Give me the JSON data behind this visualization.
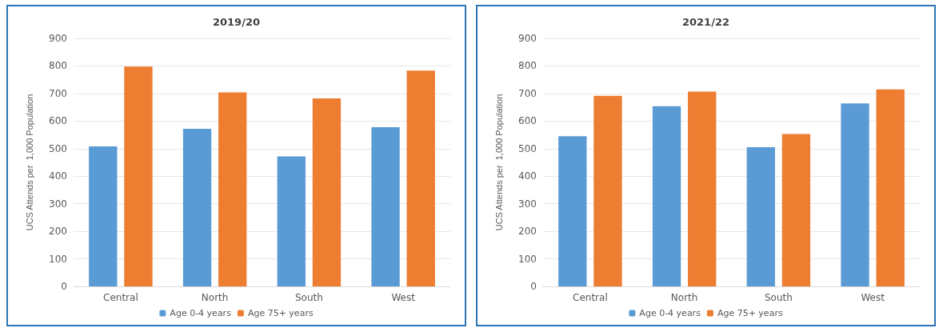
{
  "chart_data": [
    {
      "type": "bar",
      "title": "2019/20",
      "ylabel": "UCS Attends per  1,000 Population",
      "categories": [
        "Central",
        "North",
        "South",
        "West"
      ],
      "series": [
        {
          "name": "Age 0-4 years",
          "color": "#5b9bd5",
          "values": [
            508,
            572,
            472,
            578
          ]
        },
        {
          "name": "Age 75+ years",
          "color": "#ed7d31",
          "values": [
            798,
            704,
            682,
            783
          ]
        }
      ],
      "ylim": [
        0,
        900
      ],
      "yticks": [
        0,
        100,
        200,
        300,
        400,
        500,
        600,
        700,
        800,
        900
      ],
      "grid": "y",
      "legend": "bottom"
    },
    {
      "type": "bar",
      "title": "2021/22",
      "ylabel": "UCS Attends per  1,000 Population",
      "categories": [
        "Central",
        "North",
        "South",
        "West"
      ],
      "series": [
        {
          "name": "Age 0-4 years",
          "color": "#5b9bd5",
          "values": [
            545,
            654,
            505,
            664
          ]
        },
        {
          "name": "Age 75+ years",
          "color": "#ed7d31",
          "values": [
            692,
            707,
            553,
            715
          ]
        }
      ],
      "ylim": [
        0,
        900
      ],
      "yticks": [
        0,
        100,
        200,
        300,
        400,
        500,
        600,
        700,
        800,
        900
      ],
      "grid": "y",
      "legend": "bottom"
    }
  ]
}
